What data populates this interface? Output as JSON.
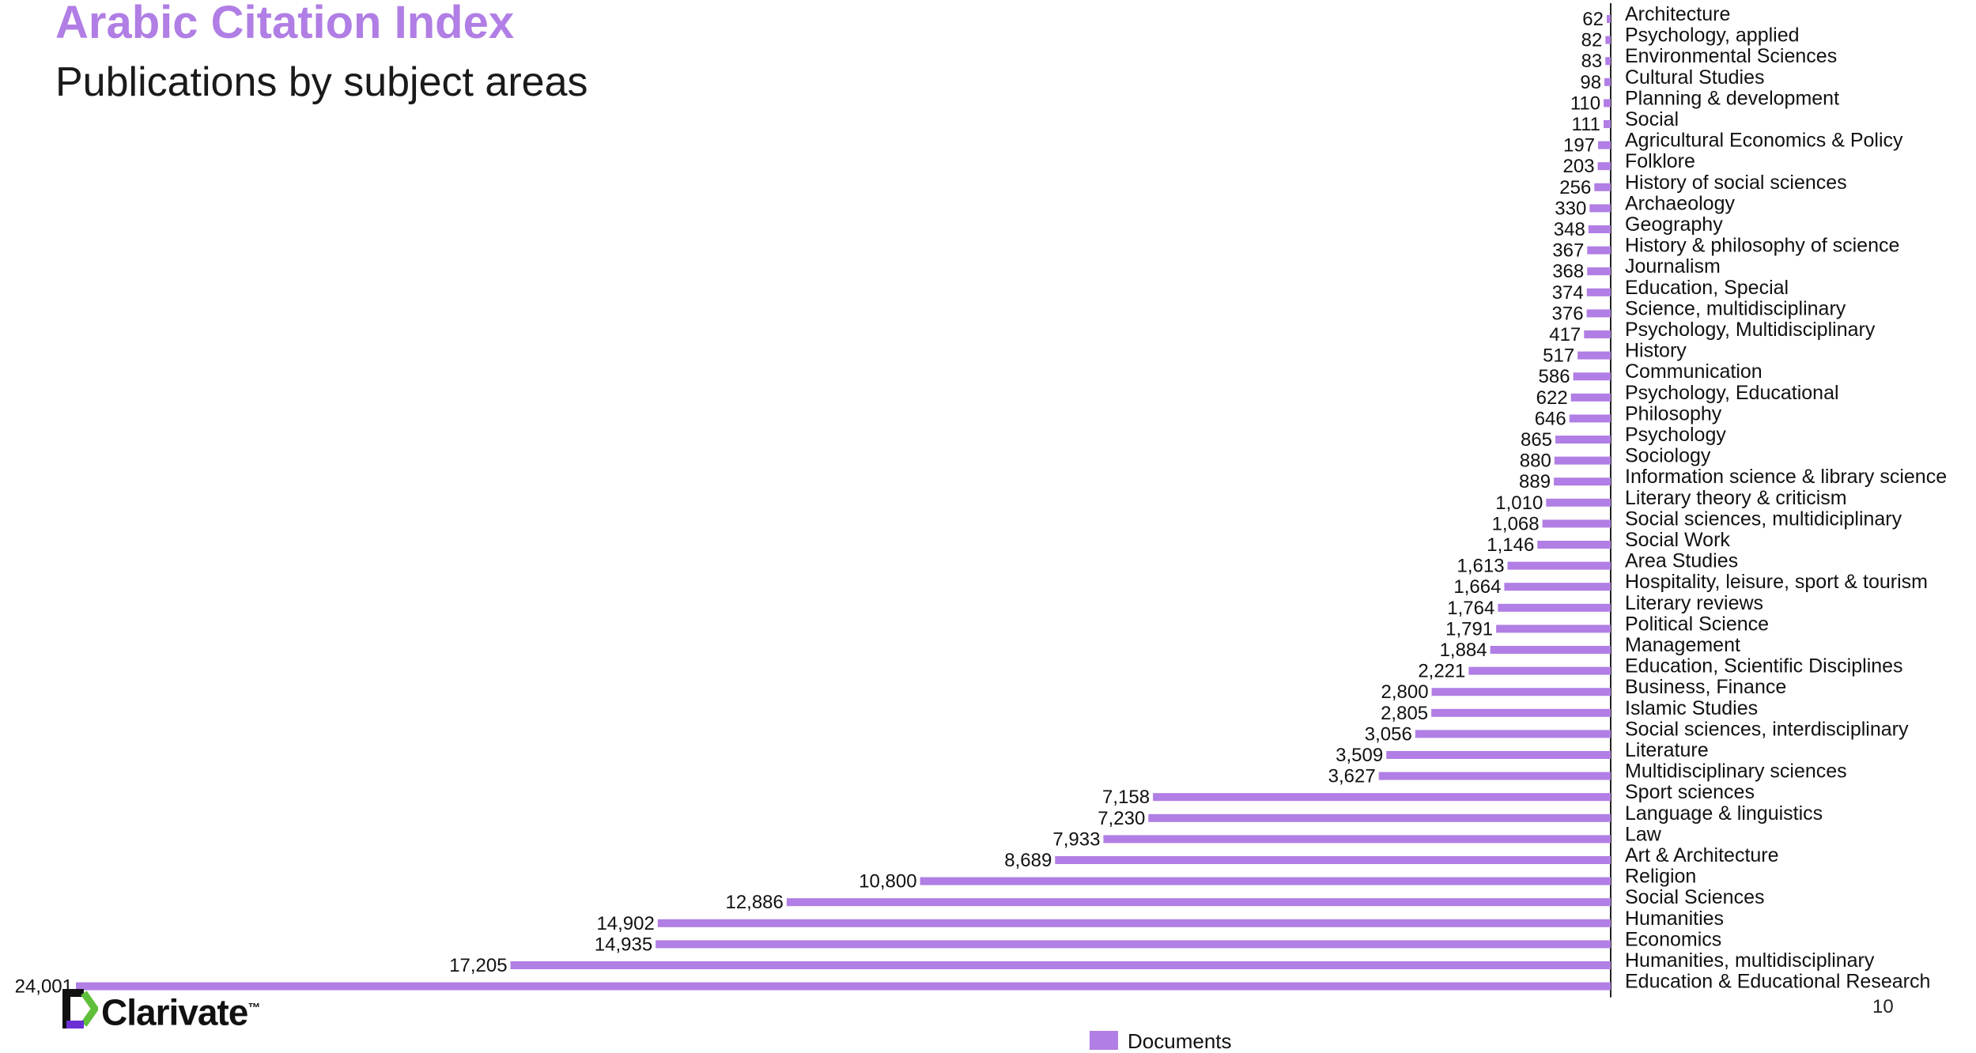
{
  "header": {
    "title": "Arabic Citation Index",
    "subtitle": "Publications by subject areas"
  },
  "footer": {
    "brand": "Clarivate",
    "trademark": "™",
    "page_number": "10"
  },
  "colors": {
    "accent": "#b07ee4",
    "bar": "#b07ee4",
    "axis": "#222222",
    "text": "#111111"
  },
  "chart_data": {
    "type": "bar",
    "orientation": "horizontal",
    "title": "Publications by subject areas",
    "grid": false,
    "legend_position": "bottom",
    "xlim": [
      0,
      24001
    ],
    "categories": [
      "Architecture",
      "Psychology, applied",
      "Environmental Sciences",
      "Cultural Studies",
      "Planning & development",
      "Social",
      "Agricultural Economics & Policy",
      "Folklore",
      "History of social sciences",
      "Archaeology",
      "Geography",
      "History & philosophy of science",
      "Journalism",
      "Education, Special",
      "Science, multidisciplinary",
      "Psychology, Multidisciplinary",
      "History",
      "Communication",
      "Psychology, Educational",
      "Philosophy",
      "Psychology",
      "Sociology",
      "Information science & library science",
      "Literary theory & criticism",
      "Social sciences, multidiciplinary",
      "Social Work",
      "Area Studies",
      "Hospitality, leisure, sport & tourism",
      "Literary reviews",
      "Political Science",
      "Management",
      "Education, Scientific Disciplines",
      "Business, Finance",
      "Islamic Studies",
      "Social sciences, interdisciplinary",
      "Literature",
      "Multidisciplinary sciences",
      "Sport sciences",
      "Language & linguistics",
      "Law",
      "Art & Architecture",
      "Religion",
      "Social Sciences",
      "Humanities",
      "Economics",
      "Humanities, multidisciplinary",
      "Education & Educational Research"
    ],
    "series": [
      {
        "name": "Documents",
        "values": [
          62,
          82,
          83,
          98,
          110,
          111,
          197,
          203,
          256,
          330,
          348,
          367,
          368,
          374,
          376,
          417,
          517,
          586,
          622,
          646,
          865,
          880,
          889,
          1010,
          1068,
          1146,
          1613,
          1664,
          1764,
          1791,
          1884,
          2221,
          2800,
          2805,
          3056,
          3509,
          3627,
          7158,
          7230,
          7933,
          8689,
          10800,
          12886,
          14902,
          14935,
          17205,
          24001
        ],
        "labels": [
          "62",
          "82",
          "83",
          "98",
          "110",
          "111",
          "197",
          "203",
          "256",
          "330",
          "348",
          "367",
          "368",
          "374",
          "376",
          "417",
          "517",
          "586",
          "622",
          "646",
          "865",
          "880",
          "889",
          "1,010",
          "1,068",
          "1,146",
          "1,613",
          "1,664",
          "1,764",
          "1,791",
          "1,884",
          "2,221",
          "2,800",
          "2,805",
          "3,056",
          "3,509",
          "3,627",
          "7,158",
          "7,230",
          "7,933",
          "8,689",
          "10,800",
          "12,886",
          "14,902",
          "14,935",
          "17,205",
          "24,001"
        ]
      }
    ]
  }
}
